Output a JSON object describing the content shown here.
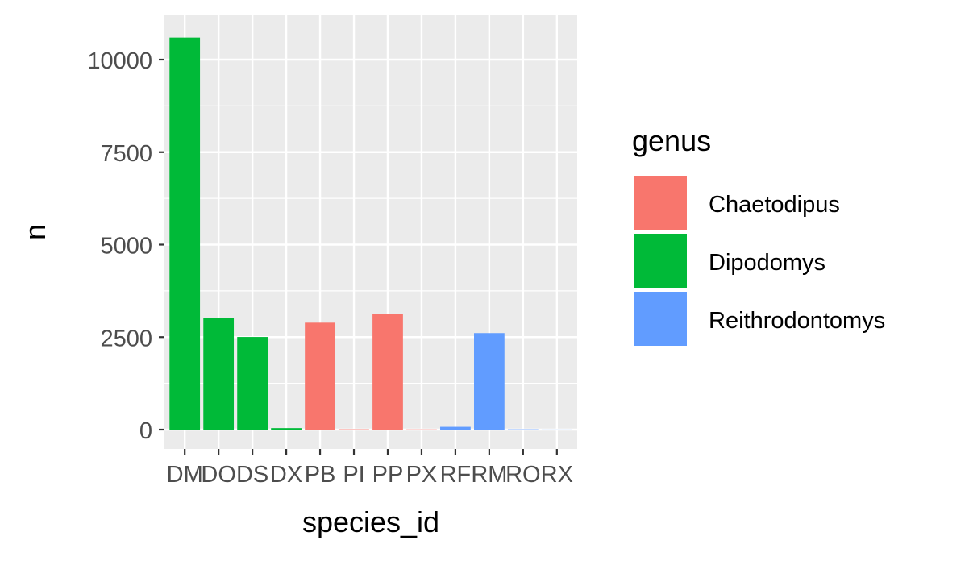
{
  "chart_data": {
    "type": "bar",
    "title": "",
    "xlabel": "species_id",
    "ylabel": "n",
    "categories": [
      "DM",
      "DO",
      "DS",
      "DX",
      "PB",
      "PI",
      "PP",
      "PX",
      "RF",
      "RM",
      "RO",
      "RX"
    ],
    "values": [
      10596,
      3027,
      2504,
      40,
      2891,
      9,
      3123,
      6,
      75,
      2609,
      8,
      2
    ],
    "genus": [
      "Dipodomys",
      "Dipodomys",
      "Dipodomys",
      "Dipodomys",
      "Chaetodipus",
      "Chaetodipus",
      "Chaetodipus",
      "Chaetodipus",
      "Reithrodontomys",
      "Reithrodontomys",
      "Reithrodontomys",
      "Reithrodontomys"
    ],
    "ylim": [
      0,
      11300
    ],
    "yticks": [
      0,
      2500,
      5000,
      7500,
      10000
    ],
    "ytick_labels": [
      "0",
      "2500",
      "5000",
      "7500",
      "10000"
    ],
    "grid": true,
    "legend": {
      "title": "genus",
      "position": "right",
      "entries": [
        {
          "label": "Chaetodipus",
          "color": "#F8766D"
        },
        {
          "label": "Dipodomys",
          "color": "#00BA38"
        },
        {
          "label": "Reithrodontomys",
          "color": "#619CFF"
        }
      ]
    }
  },
  "colors": {
    "panel_background": "#EBEBEB",
    "grid_major": "#FFFFFF",
    "tick_text": "#4D4D4D",
    "axis_title": "#000000"
  }
}
